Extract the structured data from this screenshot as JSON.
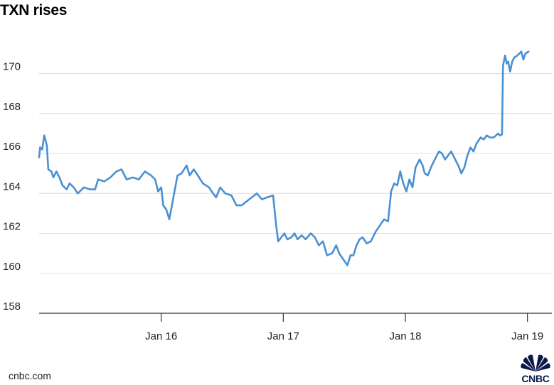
{
  "title": "TXN rises",
  "source": "cnbc.com",
  "brand": {
    "name": "CNBC",
    "color": "#0a1a4a"
  },
  "colors": {
    "line": "#4a90d2",
    "grid": "#dcdcdc",
    "axis": "#333333",
    "text": "#222222"
  },
  "chart_data": {
    "type": "line",
    "title": "TXN rises",
    "xlabel": "",
    "ylabel": "",
    "ylim": [
      158,
      171.5
    ],
    "yticks": [
      158,
      160,
      162,
      164,
      166,
      168,
      170
    ],
    "xlim": [
      -1,
      24.2
    ],
    "xticks": [
      {
        "x": 5,
        "label": "Jan 16"
      },
      {
        "x": 11,
        "label": "Jan 17"
      },
      {
        "x": 17,
        "label": "Jan 18"
      },
      {
        "x": 23,
        "label": "Jan 19"
      }
    ],
    "grid": true,
    "legend": "none",
    "series": [
      {
        "values": [
          [
            -1.0,
            165.8
          ],
          [
            -0.95,
            166.3
          ],
          [
            -0.85,
            166.2
          ],
          [
            -0.75,
            166.9
          ],
          [
            -0.62,
            166.4
          ],
          [
            -0.55,
            165.2
          ],
          [
            -0.4,
            165.1
          ],
          [
            -0.3,
            164.8
          ],
          [
            -0.15,
            165.1
          ],
          [
            0.0,
            164.8
          ],
          [
            0.15,
            164.4
          ],
          [
            0.35,
            164.2
          ],
          [
            0.5,
            164.5
          ],
          [
            0.7,
            164.3
          ],
          [
            0.9,
            164.0
          ],
          [
            1.2,
            164.3
          ],
          [
            1.5,
            164.2
          ],
          [
            1.75,
            164.2
          ],
          [
            1.9,
            164.7
          ],
          [
            2.2,
            164.6
          ],
          [
            2.5,
            164.8
          ],
          [
            2.8,
            165.1
          ],
          [
            3.05,
            165.2
          ],
          [
            3.3,
            164.7
          ],
          [
            3.6,
            164.8
          ],
          [
            3.9,
            164.7
          ],
          [
            4.2,
            165.1
          ],
          [
            4.5,
            164.9
          ],
          [
            4.7,
            164.7
          ],
          [
            4.85,
            164.1
          ],
          [
            5.0,
            164.3
          ],
          [
            5.1,
            163.4
          ],
          [
            5.25,
            163.2
          ],
          [
            5.4,
            162.7
          ],
          [
            5.6,
            163.8
          ],
          [
            5.8,
            164.9
          ],
          [
            6.0,
            165.0
          ],
          [
            6.25,
            165.4
          ],
          [
            6.4,
            164.9
          ],
          [
            6.6,
            165.2
          ],
          [
            6.8,
            164.9
          ],
          [
            7.05,
            164.5
          ],
          [
            7.35,
            164.3
          ],
          [
            7.55,
            164.0
          ],
          [
            7.7,
            163.8
          ],
          [
            7.9,
            164.3
          ],
          [
            8.15,
            164.0
          ],
          [
            8.45,
            163.9
          ],
          [
            8.7,
            163.4
          ],
          [
            8.95,
            163.4
          ],
          [
            9.2,
            163.6
          ],
          [
            9.45,
            163.8
          ],
          [
            9.7,
            164.0
          ],
          [
            9.95,
            163.7
          ],
          [
            10.2,
            163.8
          ],
          [
            10.5,
            163.9
          ],
          [
            10.65,
            162.4
          ],
          [
            10.75,
            161.6
          ],
          [
            10.9,
            161.8
          ],
          [
            11.05,
            162.0
          ],
          [
            11.2,
            161.7
          ],
          [
            11.4,
            161.8
          ],
          [
            11.55,
            162.0
          ],
          [
            11.7,
            161.7
          ],
          [
            11.9,
            161.9
          ],
          [
            12.1,
            161.7
          ],
          [
            12.35,
            162.0
          ],
          [
            12.55,
            161.8
          ],
          [
            12.75,
            161.4
          ],
          [
            12.95,
            161.6
          ],
          [
            13.15,
            160.9
          ],
          [
            13.4,
            161.0
          ],
          [
            13.6,
            161.4
          ],
          [
            13.75,
            161.0
          ],
          [
            13.95,
            160.7
          ],
          [
            14.15,
            160.4
          ],
          [
            14.3,
            160.9
          ],
          [
            14.45,
            160.9
          ],
          [
            14.6,
            161.4
          ],
          [
            14.75,
            161.7
          ],
          [
            14.9,
            161.8
          ],
          [
            15.1,
            161.5
          ],
          [
            15.3,
            161.6
          ],
          [
            15.55,
            162.1
          ],
          [
            15.75,
            162.4
          ],
          [
            15.95,
            162.7
          ],
          [
            16.15,
            162.6
          ],
          [
            16.3,
            164.1
          ],
          [
            16.45,
            164.5
          ],
          [
            16.6,
            164.4
          ],
          [
            16.75,
            165.1
          ],
          [
            16.9,
            164.5
          ],
          [
            17.05,
            164.1
          ],
          [
            17.2,
            164.7
          ],
          [
            17.35,
            164.3
          ],
          [
            17.5,
            165.3
          ],
          [
            17.7,
            165.7
          ],
          [
            17.85,
            165.4
          ],
          [
            17.95,
            165.0
          ],
          [
            18.1,
            164.9
          ],
          [
            18.3,
            165.4
          ],
          [
            18.5,
            165.8
          ],
          [
            18.65,
            166.1
          ],
          [
            18.8,
            166.0
          ],
          [
            18.95,
            165.7
          ],
          [
            19.1,
            165.9
          ],
          [
            19.25,
            166.1
          ],
          [
            19.45,
            165.7
          ],
          [
            19.6,
            165.4
          ],
          [
            19.75,
            165.0
          ],
          [
            19.9,
            165.3
          ],
          [
            20.05,
            165.9
          ],
          [
            20.2,
            166.3
          ],
          [
            20.35,
            166.1
          ],
          [
            20.5,
            166.5
          ],
          [
            20.7,
            166.8
          ],
          [
            20.85,
            166.7
          ],
          [
            21.0,
            166.9
          ],
          [
            21.15,
            166.8
          ],
          [
            21.35,
            166.8
          ],
          [
            21.55,
            167.0
          ],
          [
            21.65,
            166.9
          ],
          [
            21.75,
            166.95
          ],
          [
            21.8,
            170.4
          ],
          [
            21.9,
            170.9
          ],
          [
            21.98,
            170.5
          ],
          [
            22.05,
            170.6
          ],
          [
            22.15,
            170.1
          ],
          [
            22.25,
            170.6
          ],
          [
            22.35,
            170.8
          ],
          [
            22.5,
            170.9
          ],
          [
            22.6,
            171.0
          ],
          [
            22.7,
            171.1
          ],
          [
            22.8,
            170.7
          ],
          [
            22.9,
            171.0
          ],
          [
            23.05,
            171.1
          ]
        ]
      }
    ]
  }
}
